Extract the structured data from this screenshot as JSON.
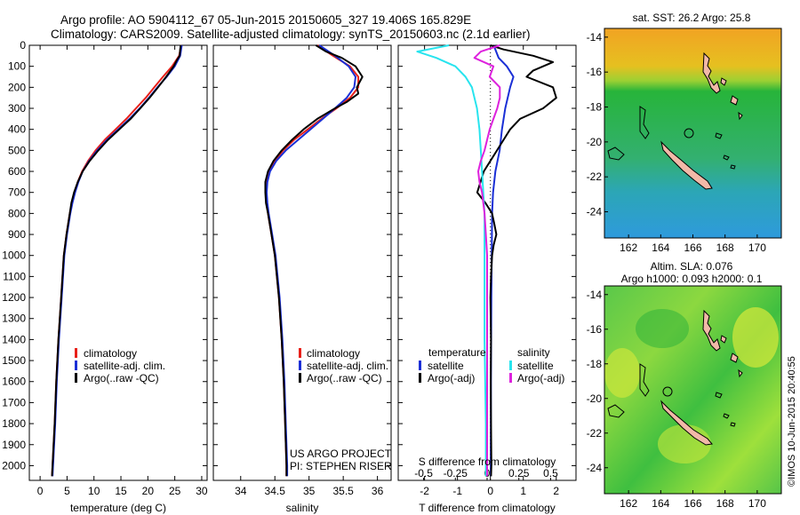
{
  "header": {
    "line1": "Argo profile: AO 5904112_67 05-Jun-2015 20150605_327 19.406S 165.829E",
    "line2": "Climatology: CARS2009. Satellite-adjusted climatology: synTS_20150603.nc (2.1d earlier)"
  },
  "watermark": "©IMOS 10-Jun-2015 20:40:55",
  "colors": {
    "clim": "#e8201a",
    "sat": "#1a2fd6",
    "argo": "#000000",
    "sal_sat": "#28e4ee",
    "sal_argo": "#dd22dd"
  },
  "panel_t": {
    "xlabel": "temperature (deg C)",
    "legend": [
      "climatology",
      "satellite-adj. clim.",
      "Argo(..raw -QC)"
    ]
  },
  "panel_s": {
    "xlabel": "salinity",
    "legend": [
      "climatology",
      "satellite-adj. clim.",
      "Argo(..raw -QC)"
    ],
    "project1": "US ARGO PROJECT",
    "project2": "PI: STEPHEN RISER"
  },
  "panel_d": {
    "xlabel": "T difference from climatology",
    "toplabel": "S difference from climatology",
    "leg_t_title": "temperature",
    "leg_s_title": "salinity",
    "leg_t": [
      "satellite",
      "Argo(-adj)"
    ],
    "leg_s": [
      "satellite",
      "Argo(-adj)"
    ]
  },
  "map_top": {
    "title": "sat. SST: 26.2  Argo: 25.8"
  },
  "map_bottom": {
    "title1": "Altim. SLA: 0.076",
    "title2": "Argo h1000: 0.093 h2000: 0.1"
  },
  "chart_data": [
    {
      "type": "line",
      "ylabel": "",
      "xlabel": "temperature (deg C)",
      "xlim": [
        -2,
        31
      ],
      "ylim": [
        2070,
        0
      ],
      "xticks": [
        "0",
        "5",
        "10",
        "15",
        "20",
        "25",
        "30"
      ],
      "xtick_values": [
        0,
        5,
        10,
        15,
        20,
        25,
        30
      ],
      "yticks": [
        "0",
        "100",
        "200",
        "300",
        "400",
        "500",
        "600",
        "700",
        "800",
        "900",
        "1000",
        "1100",
        "1200",
        "1300",
        "1400",
        "1500",
        "1600",
        "1700",
        "1800",
        "1900",
        "2000"
      ],
      "ytick_values": [
        0,
        100,
        200,
        300,
        400,
        500,
        600,
        700,
        800,
        900,
        1000,
        1100,
        1200,
        1300,
        1400,
        1500,
        1600,
        1700,
        1800,
        1900,
        2000
      ],
      "series": [
        {
          "name": "climatology",
          "color": "#e8201a",
          "depth": [
            0,
            50,
            100,
            150,
            200,
            250,
            300,
            350,
            400,
            450,
            500,
            550,
            600,
            650,
            700,
            750,
            800,
            900,
            1000,
            1200,
            1400,
            1600,
            1800,
            2000,
            2050
          ],
          "values": [
            26.2,
            25.8,
            24.5,
            22.8,
            21.2,
            19.6,
            17.8,
            16.0,
            14.0,
            12.0,
            10.3,
            8.9,
            7.8,
            7.0,
            6.4,
            5.9,
            5.5,
            4.9,
            4.4,
            3.9,
            3.4,
            3.0,
            2.7,
            2.3,
            2.2
          ]
        },
        {
          "name": "satellite-adj. clim.",
          "color": "#1a2fd6",
          "depth": [
            0,
            50,
            100,
            150,
            200,
            250,
            300,
            350,
            400,
            450,
            500,
            550,
            600,
            650,
            700,
            750,
            800,
            900,
            1000,
            1200,
            1400,
            1600,
            1800,
            2000,
            2050
          ],
          "values": [
            26.3,
            26.0,
            25.0,
            23.5,
            21.8,
            20.2,
            18.5,
            16.6,
            14.5,
            12.4,
            10.6,
            9.1,
            7.9,
            7.1,
            6.5,
            6.0,
            5.6,
            5.0,
            4.5,
            4.0,
            3.5,
            3.1,
            2.8,
            2.4,
            2.3
          ]
        },
        {
          "name": "Argo(..raw -QC)",
          "color": "#000000",
          "depth": [
            0,
            20,
            50,
            70,
            100,
            150,
            200,
            250,
            300,
            350,
            400,
            450,
            500,
            550,
            600,
            650,
            700,
            750,
            800,
            900,
            1000,
            1200,
            1400,
            1600,
            1800,
            2000,
            2050
          ],
          "values": [
            26.1,
            26.0,
            25.9,
            25.4,
            24.8,
            23.4,
            21.9,
            20.3,
            18.6,
            16.8,
            14.7,
            12.6,
            10.8,
            9.2,
            7.9,
            7.0,
            6.3,
            5.8,
            5.5,
            4.9,
            4.4,
            3.9,
            3.4,
            3.0,
            2.7,
            2.3,
            2.2
          ]
        }
      ]
    },
    {
      "type": "line",
      "xlabel": "salinity",
      "xlim": [
        33.6,
        36.2
      ],
      "ylim": [
        2070,
        0
      ],
      "xticks": [
        "34",
        "34.5",
        "35",
        "35.5",
        "36"
      ],
      "xtick_values": [
        34,
        34.5,
        35,
        35.5,
        36
      ],
      "series": [
        {
          "name": "climatology",
          "color": "#e8201a",
          "depth": [
            0,
            50,
            100,
            150,
            200,
            250,
            300,
            350,
            400,
            450,
            500,
            550,
            600,
            650,
            700,
            750,
            800,
            900,
            1000,
            1200,
            1400,
            1600,
            1800,
            2000,
            2050
          ],
          "values": [
            35.12,
            35.35,
            35.6,
            35.72,
            35.72,
            35.6,
            35.4,
            35.18,
            34.98,
            34.78,
            34.62,
            34.5,
            34.42,
            34.38,
            34.37,
            34.38,
            34.4,
            34.45,
            34.5,
            34.56,
            34.6,
            34.63,
            34.65,
            34.67,
            34.67
          ]
        },
        {
          "name": "satellite-adj. clim.",
          "color": "#1a2fd6",
          "depth": [
            0,
            50,
            100,
            150,
            200,
            250,
            300,
            350,
            400,
            450,
            500,
            550,
            600,
            650,
            700,
            750,
            800,
            900,
            1000,
            1200,
            1400,
            1600,
            1800,
            2000,
            2050
          ],
          "values": [
            35.15,
            35.38,
            35.58,
            35.68,
            35.66,
            35.55,
            35.38,
            35.2,
            35.02,
            34.84,
            34.66,
            34.52,
            34.43,
            34.39,
            34.38,
            34.39,
            34.41,
            34.46,
            34.51,
            34.57,
            34.61,
            34.64,
            34.66,
            34.68,
            34.68
          ]
        },
        {
          "name": "Argo(..raw -QC)",
          "color": "#000000",
          "depth": [
            0,
            30,
            60,
            100,
            150,
            200,
            230,
            270,
            300,
            350,
            400,
            450,
            500,
            550,
            600,
            650,
            700,
            750,
            800,
            900,
            1000,
            1200,
            1400,
            1600,
            1800,
            2000,
            2050
          ],
          "values": [
            35.1,
            35.25,
            35.48,
            35.68,
            35.78,
            35.7,
            35.72,
            35.55,
            35.38,
            35.12,
            34.92,
            34.75,
            34.6,
            34.48,
            34.4,
            34.36,
            34.36,
            34.37,
            34.4,
            34.45,
            34.5,
            34.56,
            34.6,
            34.63,
            34.65,
            34.67,
            34.67
          ]
        }
      ]
    },
    {
      "type": "line",
      "xlabel": "T difference from climatology",
      "xlim": [
        -2.8,
        2.6
      ],
      "ylim": [
        2070,
        0
      ],
      "xticks": [
        "-2",
        "-1",
        "0",
        "1",
        "2"
      ],
      "xtick_values": [
        -2,
        -1,
        0,
        1,
        2
      ],
      "top_ticks": [
        "-0.5",
        "-0.25",
        "0",
        "0.25",
        "0.5"
      ],
      "top_tick_values": [
        -0.5,
        -0.25,
        0,
        0.25,
        0.5
      ],
      "series": [
        {
          "name": "temperature satellite",
          "color": "#1a2fd6",
          "depth": [
            0,
            60,
            100,
            150,
            200,
            300,
            400,
            500,
            600,
            700,
            800,
            1000,
            1200,
            1500,
            2000,
            2050
          ],
          "values": [
            0.1,
            0.25,
            0.5,
            0.7,
            0.6,
            0.45,
            0.35,
            0.28,
            0.15,
            0.08,
            0.05,
            0.04,
            0.03,
            0.02,
            0.01,
            0.01
          ]
        },
        {
          "name": "temperature Argo(-adj)",
          "color": "#000000",
          "depth": [
            0,
            20,
            50,
            80,
            100,
            120,
            150,
            200,
            250,
            300,
            350,
            400,
            450,
            500,
            550,
            600,
            650,
            700,
            750,
            800,
            850,
            900,
            950,
            1000,
            1100,
            1200,
            1400,
            1600,
            1800,
            2000,
            2050
          ],
          "values": [
            0.0,
            0.4,
            1.3,
            1.9,
            1.6,
            1.3,
            1.1,
            1.9,
            2.0,
            1.6,
            0.9,
            0.6,
            0.4,
            0.2,
            0.0,
            -0.2,
            -0.3,
            -0.4,
            -0.15,
            0.05,
            0.12,
            0.18,
            0.1,
            0.05,
            0.02,
            0.0,
            0.02,
            0.01,
            0.02,
            0.03,
            0.02
          ]
        },
        {
          "name": "salinity satellite",
          "color": "#28e4ee",
          "depth": [
            0,
            30,
            60,
            100,
            150,
            200,
            300,
            400,
            500,
            600,
            700,
            800,
            1000,
            1400,
            1800,
            2000,
            2050
          ],
          "values": [
            -0.3,
            -0.55,
            -0.4,
            -0.25,
            -0.17,
            -0.12,
            -0.08,
            -0.06,
            -0.05,
            -0.04,
            -0.03,
            -0.02,
            -0.02,
            -0.02,
            -0.01,
            -0.01,
            -0.01
          ]
        },
        {
          "name": "salinity Argo(-adj)",
          "color": "#dd22dd",
          "depth": [
            0,
            30,
            60,
            100,
            150,
            200,
            250,
            300,
            350,
            400,
            450,
            500,
            550,
            600,
            650,
            700,
            750,
            800,
            900,
            1000,
            1200,
            1500,
            2000,
            2050
          ],
          "values": [
            0.1,
            -0.05,
            -0.1,
            0.05,
            0.02,
            0.1,
            0.1,
            0.08,
            0.05,
            0.02,
            0.0,
            -0.02,
            -0.05,
            -0.07,
            -0.06,
            -0.04,
            -0.03,
            -0.02,
            -0.01,
            0.0,
            0.0,
            0.0,
            0.0,
            0.0
          ]
        }
      ]
    },
    {
      "type": "heatmap",
      "title": "sat. SST: 26.2  Argo: 25.8",
      "xlim": [
        160.5,
        171.5
      ],
      "ylim": [
        -25.5,
        -13.5
      ],
      "xticks": [
        "162",
        "164",
        "166",
        "168",
        "170"
      ],
      "xtick_values": [
        162,
        164,
        166,
        168,
        170
      ],
      "yticks": [
        "-14",
        "-16",
        "-18",
        "-20",
        "-22",
        "-24"
      ],
      "ytick_values": [
        -14,
        -16,
        -18,
        -20,
        -22,
        -24
      ]
    },
    {
      "type": "heatmap",
      "title": "Altim. SLA: 0.076",
      "xlim": [
        160.5,
        171.5
      ],
      "ylim": [
        -25.5,
        -13.5
      ],
      "xticks": [
        "162",
        "164",
        "166",
        "168",
        "170"
      ],
      "xtick_values": [
        162,
        164,
        166,
        168,
        170
      ],
      "yticks": [
        "-14",
        "-16",
        "-18",
        "-20",
        "-22",
        "-24"
      ],
      "ytick_values": [
        -14,
        -16,
        -18,
        -20,
        -22,
        -24
      ]
    }
  ]
}
